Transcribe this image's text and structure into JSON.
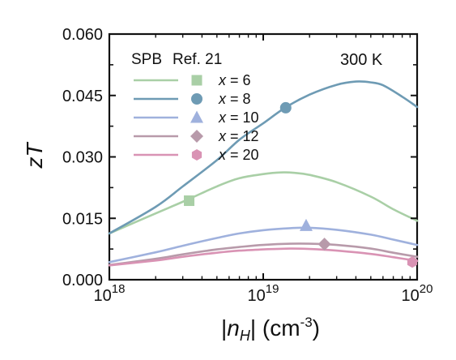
{
  "chart_data": {
    "type": "line",
    "annotation": "300 K",
    "xlabel": {
      "prefix": "|",
      "var": "n",
      "sub": "H",
      "suffix": "| (cm",
      "sup": "-3",
      "close": ")"
    },
    "ylabel": {
      "var": "zT"
    },
    "x_scale": "log",
    "xlim": [
      1e+18,
      1e+20
    ],
    "ylim": [
      0.0,
      0.06
    ],
    "x_ticks": [
      {
        "value": 1e+18,
        "base": "10",
        "exp": "18"
      },
      {
        "value": 1e+19,
        "base": "10",
        "exp": "19"
      },
      {
        "value": 1e+20,
        "base": "10",
        "exp": "20"
      }
    ],
    "y_ticks": [
      {
        "value": 0.0,
        "label": "0.000"
      },
      {
        "value": 0.015,
        "label": "0.015"
      },
      {
        "value": 0.03,
        "label": "0.030"
      },
      {
        "value": 0.045,
        "label": "0.045"
      },
      {
        "value": 0.06,
        "label": "0.060"
      }
    ],
    "grid": false,
    "legend": {
      "position": "top-left",
      "line_label": "SPB",
      "marker_label": "Ref. 21",
      "prefix": "x"
    },
    "series": [
      {
        "name": "= 6",
        "color": "#a9cfa6",
        "marker": "square",
        "curve": [
          [
            1e+18,
            0.0113
          ],
          [
            2e+18,
            0.0162
          ],
          [
            3.2e+18,
            0.0195
          ],
          [
            5e+18,
            0.0228
          ],
          [
            7e+18,
            0.0248
          ],
          [
            1e+19,
            0.0258
          ],
          [
            1.3e+19,
            0.0262
          ],
          [
            1.6e+19,
            0.0261
          ],
          [
            2e+19,
            0.0256
          ],
          [
            3e+19,
            0.0238
          ],
          [
            5e+19,
            0.0203
          ],
          [
            7e+19,
            0.0172
          ],
          [
            1e+20,
            0.0144
          ]
        ],
        "points": [
          [
            3.3e+18,
            0.0193
          ]
        ]
      },
      {
        "name": "= 8",
        "color": "#6e9bb4",
        "marker": "circle",
        "curve": [
          [
            1e+18,
            0.0113
          ],
          [
            2e+18,
            0.0178
          ],
          [
            3e+18,
            0.0228
          ],
          [
            5e+18,
            0.0292
          ],
          [
            7e+18,
            0.0342
          ],
          [
            1e+19,
            0.0382
          ],
          [
            1.4e+19,
            0.0421
          ],
          [
            2e+19,
            0.0452
          ],
          [
            3e+19,
            0.0476
          ],
          [
            4e+19,
            0.0484
          ],
          [
            5e+19,
            0.0482
          ],
          [
            6e+19,
            0.0475
          ],
          [
            8e+19,
            0.0447
          ],
          [
            1e+20,
            0.0422
          ]
        ],
        "points": [
          [
            1.4e+19,
            0.042
          ]
        ]
      },
      {
        "name": "= 10",
        "color": "#9fb1dd",
        "marker": "triangle",
        "curve": [
          [
            1e+18,
            0.0043
          ],
          [
            2e+18,
            0.0067
          ],
          [
            3e+18,
            0.0083
          ],
          [
            5e+18,
            0.0102
          ],
          [
            7e+18,
            0.0113
          ],
          [
            1e+19,
            0.0121
          ],
          [
            1.5e+19,
            0.0126
          ],
          [
            2e+19,
            0.0127
          ],
          [
            3e+19,
            0.0122
          ],
          [
            5e+19,
            0.011
          ],
          [
            7e+19,
            0.0098
          ],
          [
            1e+20,
            0.0085
          ]
        ],
        "points": [
          [
            1.9e+19,
            0.0132
          ]
        ]
      },
      {
        "name": "= 12",
        "color": "#b89aaa",
        "marker": "diamond",
        "curve": [
          [
            1e+18,
            0.0036
          ],
          [
            2e+18,
            0.0051
          ],
          [
            3e+18,
            0.0062
          ],
          [
            5e+18,
            0.0074
          ],
          [
            7e+18,
            0.008
          ],
          [
            1e+19,
            0.0085
          ],
          [
            1.5e+19,
            0.0088
          ],
          [
            2e+19,
            0.0088
          ],
          [
            3e+19,
            0.0085
          ],
          [
            5e+19,
            0.0076
          ],
          [
            7e+19,
            0.0066
          ],
          [
            1e+20,
            0.0056
          ]
        ],
        "points": [
          [
            2.5e+19,
            0.0087
          ]
        ]
      },
      {
        "name": "= 20",
        "color": "#d993b4",
        "marker": "hexagon",
        "curve": [
          [
            1e+18,
            0.0035
          ],
          [
            2e+18,
            0.0047
          ],
          [
            3e+18,
            0.0056
          ],
          [
            5e+18,
            0.0066
          ],
          [
            7e+18,
            0.0071
          ],
          [
            1e+19,
            0.0074
          ],
          [
            1.5e+19,
            0.0076
          ],
          [
            2e+19,
            0.0075
          ],
          [
            3e+19,
            0.0071
          ],
          [
            5e+19,
            0.0063
          ],
          [
            7e+19,
            0.0055
          ],
          [
            1e+20,
            0.0046
          ]
        ],
        "points": [
          [
            9.3e+19,
            0.0043
          ]
        ]
      }
    ]
  }
}
